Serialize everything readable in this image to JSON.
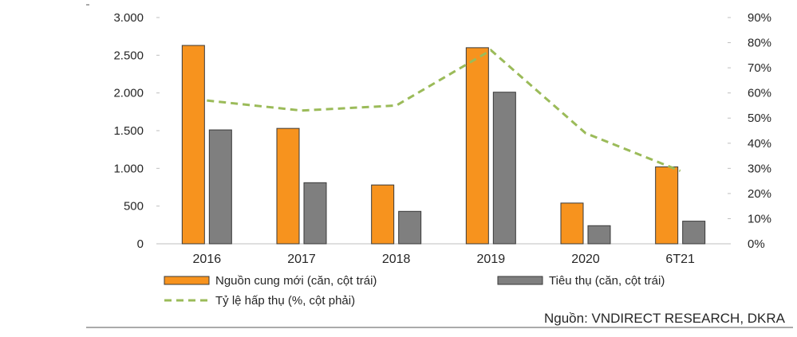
{
  "chart_data": {
    "type": "bar",
    "categories": [
      "2016",
      "2017",
      "2018",
      "2019",
      "2020",
      "6T21"
    ],
    "series": [
      {
        "name": "Nguồn cung mới (căn, cột trái)",
        "kind": "bar",
        "axis": "left",
        "color": "#f7931e",
        "values": [
          2630,
          1530,
          780,
          2600,
          540,
          1020
        ]
      },
      {
        "name": "Tiêu thụ (căn, cột trái)",
        "kind": "bar",
        "axis": "left",
        "color": "#7f7f7f",
        "values": [
          1510,
          810,
          430,
          2010,
          240,
          300
        ]
      },
      {
        "name": "Tỷ lệ hấp thụ (%, cột phải)",
        "kind": "line",
        "axis": "right",
        "color": "#9bbb59",
        "dashed": true,
        "values": [
          57,
          53,
          55,
          77,
          44,
          29
        ]
      }
    ],
    "left_axis": {
      "min": 0,
      "max": 3000,
      "ticks": [
        0,
        500,
        1000,
        1500,
        2000,
        2500,
        3000
      ],
      "tick_labels": [
        "0",
        "500",
        "1.000",
        "1.500",
        "2.000",
        "2.500",
        "3.000"
      ]
    },
    "right_axis": {
      "min": 0,
      "max": 90,
      "ticks": [
        0,
        10,
        20,
        30,
        40,
        50,
        60,
        70,
        80,
        90
      ],
      "tick_labels": [
        "0%",
        "10%",
        "20%",
        "30%",
        "40%",
        "50%",
        "60%",
        "70%",
        "80%",
        "90%"
      ]
    },
    "grid": false,
    "legend_position": "bottom",
    "source": "Nguồn: VNDIRECT RESEARCH, DKRA"
  }
}
